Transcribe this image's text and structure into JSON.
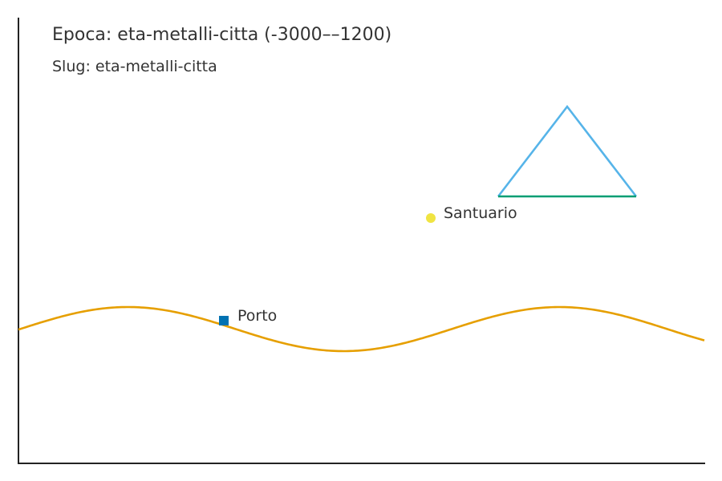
{
  "header": {
    "title": "Epoca: eta-metalli-citta (-3000––1200)",
    "subtitle": "Slug: eta-metalli-citta"
  },
  "colors": {
    "axis": "#222222",
    "text": "#333333",
    "river": "#E69F00",
    "port": "#0072B2",
    "sanctuary": "#F0E442",
    "mountain_sides": "#56B4E9",
    "mountain_base": "#009E73"
  },
  "features": {
    "river": {
      "icon": "river-wave"
    },
    "port": {
      "label": "Porto",
      "icon": "square-marker"
    },
    "sanctuary": {
      "label": "Santuario",
      "icon": "circle-marker"
    },
    "mountain": {
      "icon": "triangle-outline"
    }
  }
}
